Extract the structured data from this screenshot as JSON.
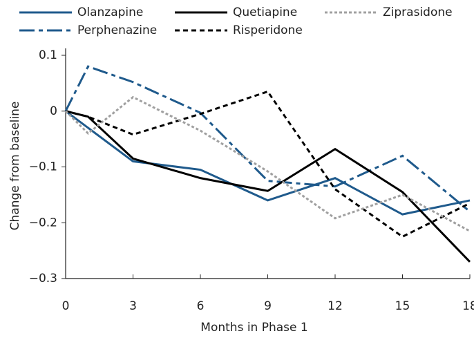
{
  "chart_data": {
    "type": "line",
    "x": [
      0,
      1,
      3,
      6,
      9,
      12,
      15,
      18
    ],
    "series": [
      {
        "name": "Olanzapine",
        "color": "#1f5a8c",
        "style": "solid",
        "values": [
          0,
          -0.03,
          -0.09,
          -0.105,
          -0.16,
          -0.12,
          -0.185,
          -0.16
        ]
      },
      {
        "name": "Perphenazine",
        "color": "#1f5a8c",
        "style": "dashdot",
        "values": [
          0,
          0.08,
          0.052,
          -0.003,
          -0.125,
          -0.135,
          -0.08,
          -0.18
        ]
      },
      {
        "name": "Quetiapine",
        "color": "#000000",
        "style": "solid",
        "values": [
          0,
          -0.01,
          -0.085,
          -0.12,
          -0.143,
          -0.068,
          -0.145,
          -0.27
        ]
      },
      {
        "name": "Risperidone",
        "color": "#000000",
        "style": "dash",
        "values": [
          0,
          -0.01,
          -0.042,
          -0.005,
          0.035,
          -0.14,
          -0.225,
          -0.165
        ]
      },
      {
        "name": "Ziprasidone",
        "color": "#a0a0a0",
        "style": "dot",
        "values": [
          0,
          -0.04,
          0.025,
          -0.035,
          -0.108,
          -0.192,
          -0.15,
          -0.215
        ]
      }
    ],
    "xlabel": "Months in Phase 1",
    "ylabel": "Change from baseline",
    "xlim": [
      0,
      18
    ],
    "xticks": [
      0,
      3,
      6,
      9,
      12,
      15,
      18
    ],
    "ylim": [
      -0.3,
      0.1
    ],
    "yticks": [
      {
        "value": -0.3,
        "label": "−0.3"
      },
      {
        "value": -0.2,
        "label": "−0.2"
      },
      {
        "value": -0.1,
        "label": "−0.1"
      },
      0,
      0.1
    ],
    "legend": "top"
  }
}
